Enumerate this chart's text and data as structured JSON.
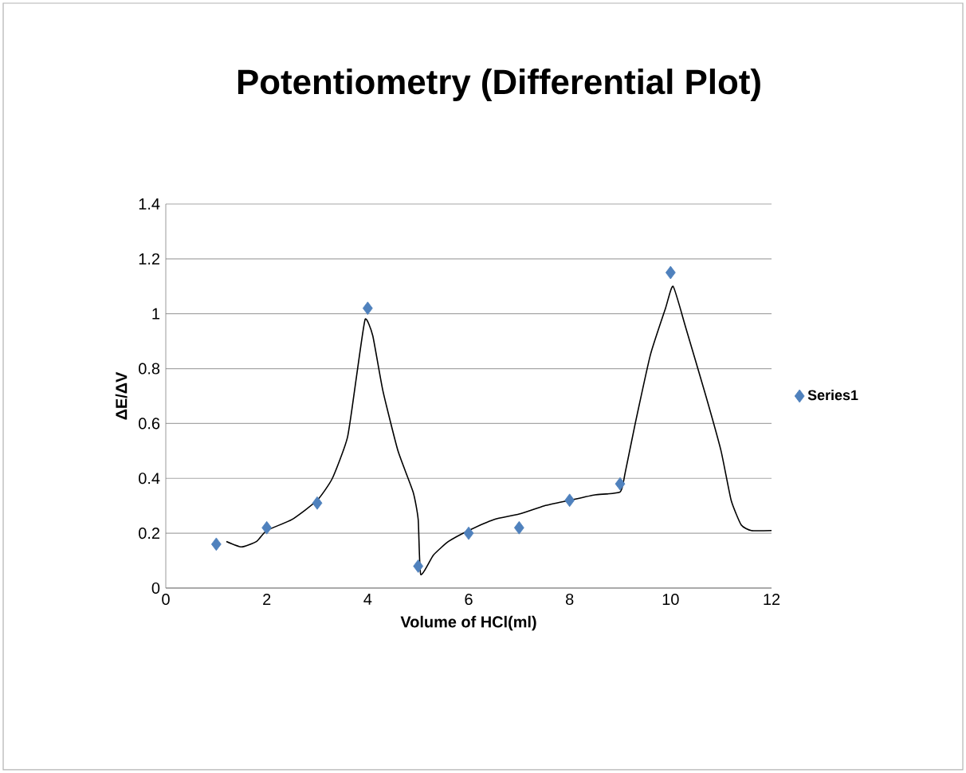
{
  "chart_data": {
    "type": "scatter",
    "title": "Potentiometry (Differential Plot)",
    "xlabel": "Volume of HCl(ml)",
    "ylabel": "ΔE/ΔV",
    "xlim": [
      0,
      12
    ],
    "ylim": [
      0,
      1.4
    ],
    "xticks": [
      0,
      2,
      4,
      6,
      8,
      10,
      12
    ],
    "yticks": [
      0,
      0.2,
      0.4,
      0.6,
      0.8,
      1,
      1.2,
      1.4
    ],
    "grid": "y",
    "legend": "right",
    "series": [
      {
        "type": "line",
        "color": "#000000",
        "line_style": "solid",
        "marker": "none",
        "x": [
          1.2,
          1.5,
          1.8,
          2,
          2.5,
          3,
          3.3,
          3.6,
          3.8,
          3.95,
          4.1,
          4.3,
          4.6,
          4.9,
          5,
          5.05,
          5.3,
          5.6,
          6,
          6.5,
          7,
          7.5,
          8,
          8.5,
          9,
          9.1,
          9.3,
          9.6,
          9.9,
          10.05,
          10.3,
          10.7,
          11,
          11.2,
          11.4,
          11.6,
          12
        ],
        "values": [
          0.17,
          0.15,
          0.17,
          0.21,
          0.25,
          0.32,
          0.4,
          0.55,
          0.8,
          0.98,
          0.92,
          0.72,
          0.5,
          0.35,
          0.25,
          0.05,
          0.12,
          0.17,
          0.21,
          0.25,
          0.27,
          0.3,
          0.32,
          0.34,
          0.35,
          0.42,
          0.6,
          0.85,
          1.02,
          1.1,
          0.95,
          0.7,
          0.5,
          0.32,
          0.23,
          0.21,
          0.21
        ]
      },
      {
        "name": "Series1",
        "color": "#4f81bd",
        "marker": "diamond",
        "x": [
          1,
          2,
          3,
          4,
          5,
          6,
          7,
          8,
          9,
          10
        ],
        "values": [
          0.16,
          0.22,
          0.31,
          1.02,
          0.08,
          0.2,
          0.22,
          0.32,
          0.38,
          1.15
        ]
      }
    ]
  }
}
